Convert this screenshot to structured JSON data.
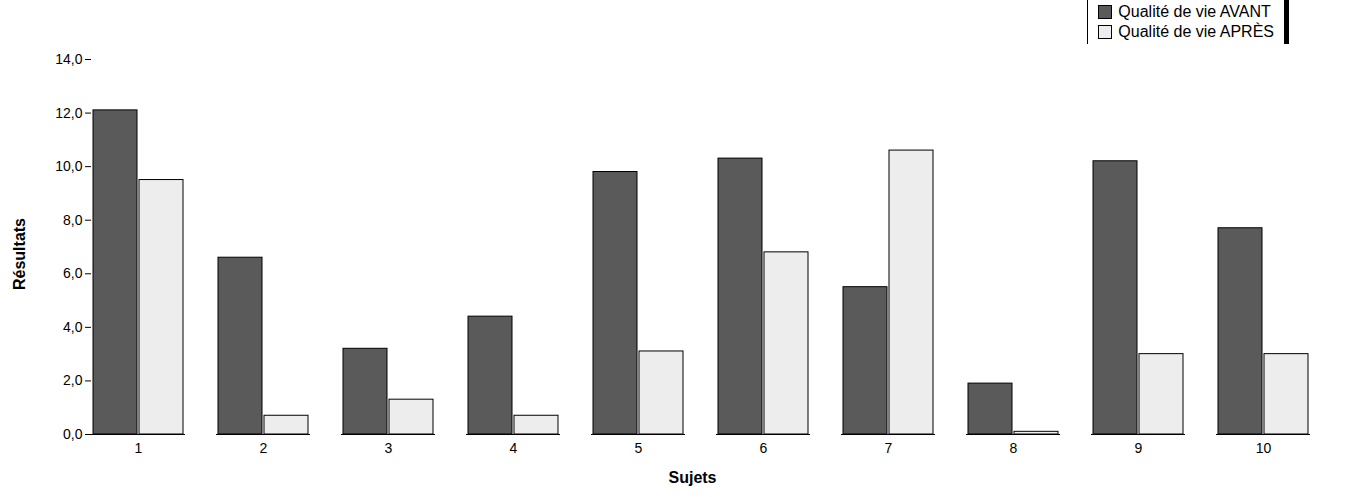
{
  "chart_data": {
    "type": "bar",
    "x_label": "Sujets",
    "y_label": "Résultats",
    "categories": [
      "1",
      "2",
      "3",
      "4",
      "5",
      "6",
      "7",
      "8",
      "9",
      "10"
    ],
    "series": [
      {
        "name": "Qualité de vie AVANT",
        "color": "#5a5a5a",
        "values": [
          12.1,
          6.6,
          3.2,
          4.4,
          9.8,
          10.3,
          5.5,
          1.9,
          10.2,
          7.7
        ]
      },
      {
        "name": "Qualité de vie APRÈS",
        "color": "#ededed",
        "values": [
          9.5,
          0.7,
          1.3,
          0.7,
          3.1,
          6.8,
          10.6,
          0.1,
          3.0,
          3.0
        ]
      }
    ],
    "ylim": [
      0,
      14
    ],
    "yticks": [
      {
        "value": 0,
        "label": "0,0"
      },
      {
        "value": 2,
        "label": "2,0"
      },
      {
        "value": 4,
        "label": "4,0"
      },
      {
        "value": 6,
        "label": "6,0"
      },
      {
        "value": 8,
        "label": "8,0"
      },
      {
        "value": 10,
        "label": "10,0"
      },
      {
        "value": 12,
        "label": "12,0"
      },
      {
        "value": 14,
        "label": "14,0"
      }
    ],
    "grid": false,
    "legend": "top-right"
  }
}
